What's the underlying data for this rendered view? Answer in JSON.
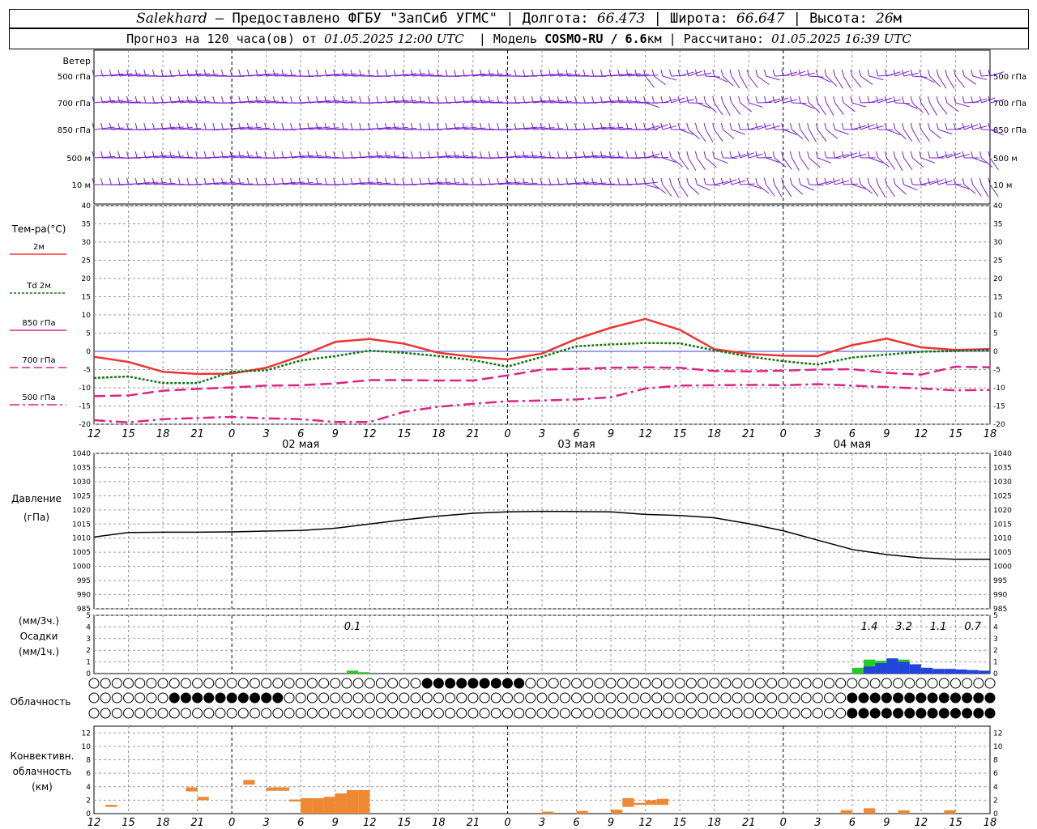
{
  "header": {
    "station": "Salekhard",
    "provider": " – Предоставлено ФГБУ \"ЗапСиб УГМС\" | Долгота: ",
    "lon": "66.473",
    "lat_label": " | Широта: ",
    "lat": "66.647",
    "alt_label": " | Высота: ",
    "alt": "26",
    "alt_unit": "м",
    "forecast_label": "Прогноз на 120 часа(ов) от ",
    "forecast_time": "01.05.2025 12:00 UTC",
    "model_label": "  | Модель ",
    "model": "COSMO-RU / 6.6",
    "model_unit": "км",
    "calc_label": " | Рассчитано: ",
    "calc_time": "01.05.2025 16:39 UTC"
  },
  "labels": {
    "wind": "Ветер",
    "levels": [
      "500 гПа",
      "700 гПа",
      "850 гПа",
      "500 м",
      "10 м"
    ],
    "temp_title": "Тем-ра(°С)",
    "legend": [
      {
        "text": "2м",
        "color": "#ee3333",
        "dash": ""
      },
      {
        "text": "Td  2м",
        "color": "#117711",
        "dash": "3,2"
      },
      {
        "text": "850 гПа",
        "color": "#dd2288",
        "dash": ""
      },
      {
        "text": "700 гПа",
        "color": "#dd2288",
        "dash": "10,5"
      },
      {
        "text": "500 гПа",
        "color": "#dd2288",
        "dash": "12,4,3,4"
      }
    ],
    "pressure_title": [
      "Давление",
      "(гПа)"
    ],
    "precip_title": [
      "(мм/3ч.)",
      "Осадки",
      "(мм/1ч.)"
    ],
    "cloud_title": "Облачность",
    "conv_title": [
      "Конвективн.",
      "облачность",
      "(км)"
    ],
    "dates": [
      "02 мая",
      "03 мая",
      "04 мая"
    ],
    "hour_ticks": [
      "12",
      "15",
      "18",
      "21",
      "0",
      "3",
      "6",
      "9",
      "12",
      "15",
      "18",
      "21",
      "0",
      "3",
      "6",
      "9",
      "12",
      "15",
      "18",
      "21",
      "0",
      "3",
      "6",
      "9",
      "12",
      "15",
      "18"
    ]
  },
  "colors": {
    "t2m": "#ee3333",
    "td2m": "#117711",
    "t850": "#dd2288",
    "t700": "#dd2288",
    "t500": "#dd2288",
    "wind": "#7722cc",
    "pressure": "#000000",
    "precip_3h": "#22cc22",
    "precip_1h": "#2244dd",
    "conv": "#ee8833"
  },
  "chart_data": [
    {
      "type": "line",
      "title": "Тем-ра(°С)",
      "xlabel": "",
      "ylabel": "",
      "x_hours": [
        0,
        3,
        6,
        9,
        12,
        15,
        18,
        21,
        24,
        27,
        30,
        33,
        36,
        39,
        42,
        45,
        48,
        51,
        54,
        57,
        60,
        63,
        66,
        69,
        72,
        75,
        78
      ],
      "ylim": [
        -20,
        40
      ],
      "grid": true,
      "series": [
        {
          "name": "2м",
          "values": [
            -1.5,
            -2.9,
            -5.6,
            -6.2,
            -6.1,
            -4.5,
            -1.3,
            2.6,
            3.4,
            2.1,
            -0.4,
            -1.5,
            -2.2,
            -0.6,
            3.4,
            6.5,
            8.9,
            5.9,
            0.6,
            -0.7,
            -1.2,
            -1.3,
            1.7,
            3.5,
            1.1,
            0.4,
            0.6
          ]
        },
        {
          "name": "Td  2м",
          "values": [
            -7.3,
            -6.9,
            -8.7,
            -8.7,
            -5.6,
            -5.2,
            -2.5,
            -1.3,
            0.2,
            -0.4,
            -1.3,
            -2.4,
            -4.2,
            -1.5,
            1.4,
            1.9,
            2.3,
            2.2,
            0.3,
            -1.4,
            -2.7,
            -3.6,
            -1.7,
            -0.9,
            -0.1,
            0.1,
            0.4
          ]
        },
        {
          "name": "850 гПа",
          "values": [
            -12.3,
            -12.1,
            -10.8,
            -10.3,
            -9.9,
            -9.4,
            -9.3,
            -8.8,
            -7.9,
            -7.9,
            -8.0,
            -8.0,
            -6.6,
            -5.0,
            -4.8,
            -4.5,
            -4.4,
            -4.5,
            -5.4,
            -5.5,
            -5.3,
            -5.0,
            -4.9,
            -5.9,
            -6.4,
            -4.2,
            -4.4
          ]
        },
        {
          "name": "700 гПа",
          "values": [
            -12.3,
            -12.1,
            -10.8,
            -10.3,
            -9.9,
            -9.4,
            -9.3,
            -8.8,
            -7.9,
            -7.9,
            -8.0,
            -8.0,
            -6.6,
            -5.0,
            -4.8,
            -4.5,
            -4.4,
            -4.5,
            -5.4,
            -5.5,
            -5.3,
            -5.0,
            -4.9,
            -5.9,
            -6.4,
            -4.2,
            -4.4
          ]
        },
        {
          "name": "500 гПа",
          "values": [
            -18.9,
            -19.5,
            -18.6,
            -18.3,
            -18.0,
            -18.4,
            -18.6,
            -19.4,
            -19.4,
            -16.6,
            -15.2,
            -14.4,
            -13.7,
            -13.5,
            -13.2,
            -12.6,
            -10.2,
            -9.4,
            -9.3,
            -9.2,
            -9.3,
            -9.0,
            -9.4,
            -9.8,
            -10.2,
            -10.7,
            -10.6
          ]
        }
      ]
    },
    {
      "type": "line",
      "title": "Давление",
      "ylabel": "(гПа)",
      "x_hours": [
        0,
        3,
        6,
        9,
        12,
        15,
        18,
        21,
        24,
        27,
        30,
        33,
        36,
        39,
        42,
        45,
        48,
        51,
        54,
        57,
        60,
        63,
        66,
        69,
        72,
        75,
        78
      ],
      "ylim": [
        985,
        1040
      ],
      "yticks": [
        1040,
        1035,
        1030,
        1025,
        1020,
        1015,
        1010,
        1005,
        1000,
        995,
        990,
        985
      ],
      "grid": true,
      "series": [
        {
          "name": "",
          "values": [
            1010.4,
            1012.0,
            1012.1,
            1012.1,
            1012.2,
            1012.5,
            1012.7,
            1013.5,
            1015.0,
            1016.5,
            1017.8,
            1018.8,
            1019.3,
            1019.5,
            1019.4,
            1019.3,
            1018.4,
            1018.0,
            1017.2,
            1015.1,
            1012.6,
            1009.3,
            1006.0,
            1004.2,
            1003.0,
            1002.5,
            1002.5
          ]
        }
      ]
    },
    {
      "type": "bar",
      "title": "Осадки",
      "ylabel": "(мм/3ч.) (мм/1ч.)",
      "ylim": [
        0,
        5
      ],
      "yticks": [
        5,
        4,
        3,
        2,
        1,
        0
      ],
      "annotations": [
        {
          "x_hour": 22.5,
          "text": "0.1"
        },
        {
          "x_hour": 67.5,
          "text": "1.4"
        },
        {
          "x_hour": 70.5,
          "text": "3.2"
        },
        {
          "x_hour": 73.5,
          "text": "1.1"
        },
        {
          "x_hour": 76.5,
          "text": "0.7"
        }
      ],
      "series": [
        {
          "name": "3h",
          "bars": [
            {
              "x_hour": 22,
              "value": 0.25
            },
            {
              "x_hour": 23,
              "value": 0.12
            },
            {
              "x_hour": 66,
              "value": 0.5
            },
            {
              "x_hour": 67,
              "value": 1.2
            },
            {
              "x_hour": 68,
              "value": 1.1
            },
            {
              "x_hour": 69,
              "value": 1.3
            },
            {
              "x_hour": 70,
              "value": 1.2
            }
          ]
        },
        {
          "name": "1h",
          "bars": [
            {
              "x_hour": 67,
              "value": 0.6
            },
            {
              "x_hour": 68,
              "value": 0.9
            },
            {
              "x_hour": 69,
              "value": 1.3
            },
            {
              "x_hour": 70,
              "value": 1.0
            },
            {
              "x_hour": 71,
              "value": 0.8
            },
            {
              "x_hour": 72,
              "value": 0.5
            },
            {
              "x_hour": 73,
              "value": 0.4
            },
            {
              "x_hour": 74,
              "value": 0.4
            },
            {
              "x_hour": 75,
              "value": 0.35
            },
            {
              "x_hour": 76,
              "value": 0.3
            },
            {
              "x_hour": 77,
              "value": 0.25
            }
          ]
        }
      ]
    },
    {
      "type": "bar",
      "title": "Конвективн. облачность (км)",
      "ylim": [
        0,
        13
      ],
      "yticks": [
        12,
        10,
        8,
        6,
        4,
        2,
        0
      ],
      "series": [
        {
          "name": "conv",
          "bars": [
            {
              "x_hour": 1.5,
              "bottom": 1.0,
              "top": 1.3
            },
            {
              "x_hour": 8.5,
              "bottom": 3.3,
              "top": 3.9
            },
            {
              "x_hour": 9.5,
              "bottom": 2.0,
              "top": 2.5
            },
            {
              "x_hour": 13.5,
              "bottom": 4.3,
              "top": 5.0
            },
            {
              "x_hour": 15.5,
              "bottom": 3.4,
              "top": 3.9
            },
            {
              "x_hour": 16.5,
              "bottom": 3.4,
              "top": 3.9
            },
            {
              "x_hour": 17.5,
              "bottom": 1.8,
              "top": 2.1
            },
            {
              "x_hour": 18.5,
              "bottom": 0,
              "top": 2.3
            },
            {
              "x_hour": 19.5,
              "bottom": 0,
              "top": 2.3
            },
            {
              "x_hour": 20.5,
              "bottom": 0,
              "top": 2.5
            },
            {
              "x_hour": 21.5,
              "bottom": 0,
              "top": 3.0
            },
            {
              "x_hour": 22.5,
              "bottom": 0,
              "top": 3.5
            },
            {
              "x_hour": 23.5,
              "bottom": 0,
              "top": 3.5
            },
            {
              "x_hour": 39.5,
              "bottom": 0,
              "top": 0.3
            },
            {
              "x_hour": 42.5,
              "bottom": 0,
              "top": 0.4
            },
            {
              "x_hour": 45.5,
              "bottom": 0,
              "top": 0.6
            },
            {
              "x_hour": 46.5,
              "bottom": 1.0,
              "top": 2.3
            },
            {
              "x_hour": 47.5,
              "bottom": 1.3,
              "top": 1.6
            },
            {
              "x_hour": 48.5,
              "bottom": 1.3,
              "top": 2.0
            },
            {
              "x_hour": 49.5,
              "bottom": 1.3,
              "top": 2.2
            },
            {
              "x_hour": 65.5,
              "bottom": 0,
              "top": 0.5
            },
            {
              "x_hour": 67.5,
              "bottom": 0,
              "top": 0.8
            },
            {
              "x_hour": 70.5,
              "bottom": 0,
              "top": 0.5
            },
            {
              "x_hour": 74.5,
              "bottom": 0,
              "top": 0.5
            }
          ]
        }
      ]
    }
  ]
}
